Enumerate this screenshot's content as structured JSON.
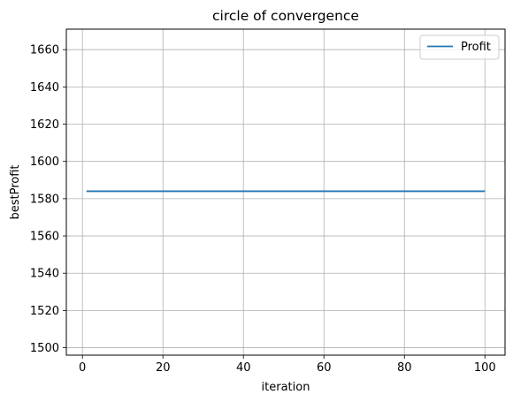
{
  "chart_data": {
    "type": "line",
    "title": "circle of convergence",
    "xlabel": "iteration",
    "ylabel": "bestProfit",
    "xlim": [
      -4,
      105
    ],
    "ylim": [
      1496,
      1671
    ],
    "xticks": [
      0,
      20,
      40,
      60,
      80,
      100
    ],
    "yticks": [
      1500,
      1520,
      1540,
      1560,
      1580,
      1600,
      1620,
      1640,
      1660
    ],
    "grid": true,
    "legend_position": "top-right",
    "series": [
      {
        "name": "Profit",
        "color": "#1f77b4",
        "x": [
          1,
          100
        ],
        "y": [
          1584,
          1584
        ]
      }
    ]
  }
}
